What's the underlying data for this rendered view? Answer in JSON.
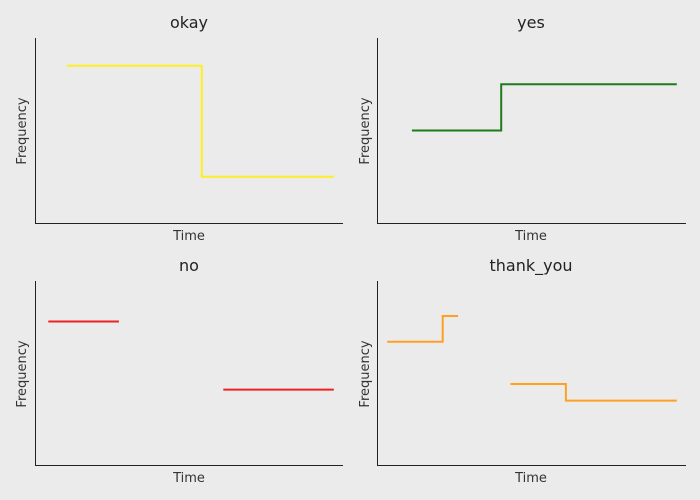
{
  "chart_data": [
    {
      "type": "line",
      "title": "okay",
      "xlabel": "Time",
      "ylabel": "Frequency",
      "color": "#ffee22",
      "xlim": [
        0,
        10
      ],
      "ylim": [
        0,
        10
      ],
      "segments": [
        {
          "x": [
            1,
            5.4,
            5.4,
            9.7
          ],
          "y": [
            8.5,
            8.5,
            2.5,
            2.5
          ]
        }
      ]
    },
    {
      "type": "line",
      "title": "yes",
      "xlabel": "Time",
      "ylabel": "Frequency",
      "color": "#1f7a1a",
      "xlim": [
        0,
        10
      ],
      "ylim": [
        0,
        10
      ],
      "segments": [
        {
          "x": [
            1.1,
            4,
            4,
            9.7
          ],
          "y": [
            5,
            5,
            7.5,
            7.5
          ]
        }
      ]
    },
    {
      "type": "line",
      "title": "no",
      "xlabel": "Time",
      "ylabel": "Frequency",
      "color": "#ee2222",
      "xlim": [
        0,
        10
      ],
      "ylim": [
        0,
        10
      ],
      "segments": [
        {
          "x": [
            0.4,
            2.7
          ],
          "y": [
            7.8,
            7.8
          ]
        },
        {
          "x": [
            6.1,
            9.7
          ],
          "y": [
            4.1,
            4.1
          ]
        }
      ]
    },
    {
      "type": "line",
      "title": "thank_you",
      "xlabel": "Time",
      "ylabel": "Frequency",
      "color": "#ffa024",
      "xlim": [
        0,
        10
      ],
      "ylim": [
        0,
        10
      ],
      "segments": [
        {
          "x": [
            0.3,
            2.1,
            2.1,
            2.6
          ],
          "y": [
            6.7,
            6.7,
            8.1,
            8.1
          ]
        },
        {
          "x": [
            4.3,
            6.1,
            6.1,
            9.7
          ],
          "y": [
            4.4,
            4.4,
            3.5,
            3.5
          ]
        }
      ]
    }
  ]
}
